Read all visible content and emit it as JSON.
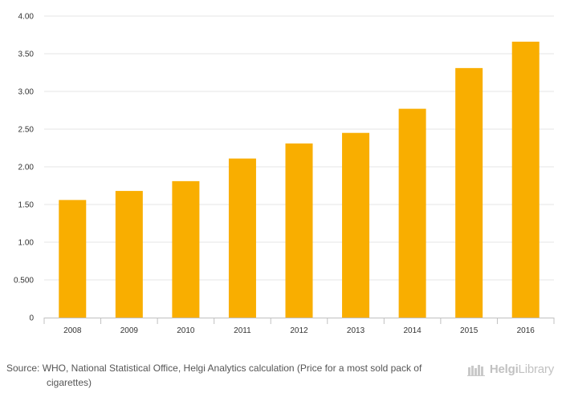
{
  "chart_data": {
    "type": "bar",
    "categories": [
      "2008",
      "2009",
      "2010",
      "2011",
      "2012",
      "2013",
      "2014",
      "2015",
      "2016"
    ],
    "values": [
      1.56,
      1.68,
      1.81,
      2.11,
      2.31,
      2.45,
      2.77,
      3.31,
      3.66
    ],
    "title": "",
    "xlabel": "",
    "ylabel": "",
    "ylim": [
      0,
      4
    ],
    "yticks": [
      0,
      0.5,
      1,
      1.5,
      2,
      2.5,
      3,
      3.5,
      4
    ],
    "ytick_labels": [
      "0",
      "0.500",
      "1.00",
      "1.50",
      "2.00",
      "2.50",
      "3.00",
      "3.50",
      "4.00"
    ],
    "grid": true,
    "legend": "none",
    "bar_color": "#f9ae00"
  },
  "footer": {
    "source": "Source: WHO, National Statistical Office, Helgi Analytics calculation (Price for a most sold pack of cigarettes)",
    "logo_brand": "Helgi",
    "logo_suffix": "Library"
  },
  "colors": {
    "bar": "#f9ae00",
    "grid": "#e6e6e6",
    "axis": "#c0c0c0",
    "text": "#333333"
  }
}
